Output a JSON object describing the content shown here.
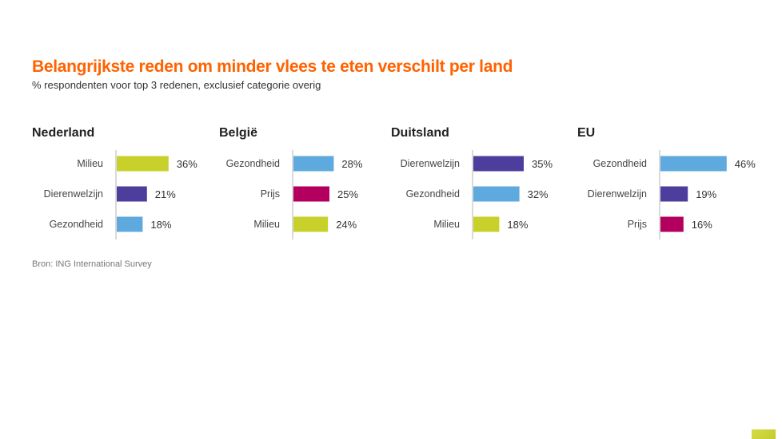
{
  "colors": {
    "title": "#ff6200",
    "Milieu": "#c7d12a",
    "Dierenwelzijn": "#4d3e9e",
    "Gezondheid": "#5ea9dd",
    "Prijs": "#b3005f"
  },
  "chart_data": {
    "type": "bar",
    "orientation": "horizontal",
    "title": "Belangrijkste reden om minder vlees te eten verschilt per land",
    "subtitle": "% respondenten voor top 3 redenen, exclusief categorie overig",
    "source": "Bron: ING International Survey",
    "panels": [
      {
        "title": "Nederland",
        "categories": [
          "Milieu",
          "Dierenwelzijn",
          "Gezondheid"
        ],
        "values": [
          36,
          21,
          18
        ],
        "labels": [
          "36%",
          "21%",
          "18%"
        ]
      },
      {
        "title": "België",
        "categories": [
          "Gezondheid",
          "Prijs",
          "Milieu"
        ],
        "values": [
          28,
          25,
          24
        ],
        "labels": [
          "28%",
          "25%",
          "24%"
        ]
      },
      {
        "title": "Duitsland",
        "categories": [
          "Dierenwelzijn",
          "Gezondheid",
          "Milieu"
        ],
        "values": [
          35,
          32,
          18
        ],
        "labels": [
          "35%",
          "32%",
          "18%"
        ]
      },
      {
        "title": "EU",
        "categories": [
          "Gezondheid",
          "Dierenwelzijn",
          "Prijs"
        ],
        "values": [
          46,
          19,
          16
        ],
        "labels": [
          "46%",
          "19%",
          "16%"
        ]
      }
    ]
  }
}
